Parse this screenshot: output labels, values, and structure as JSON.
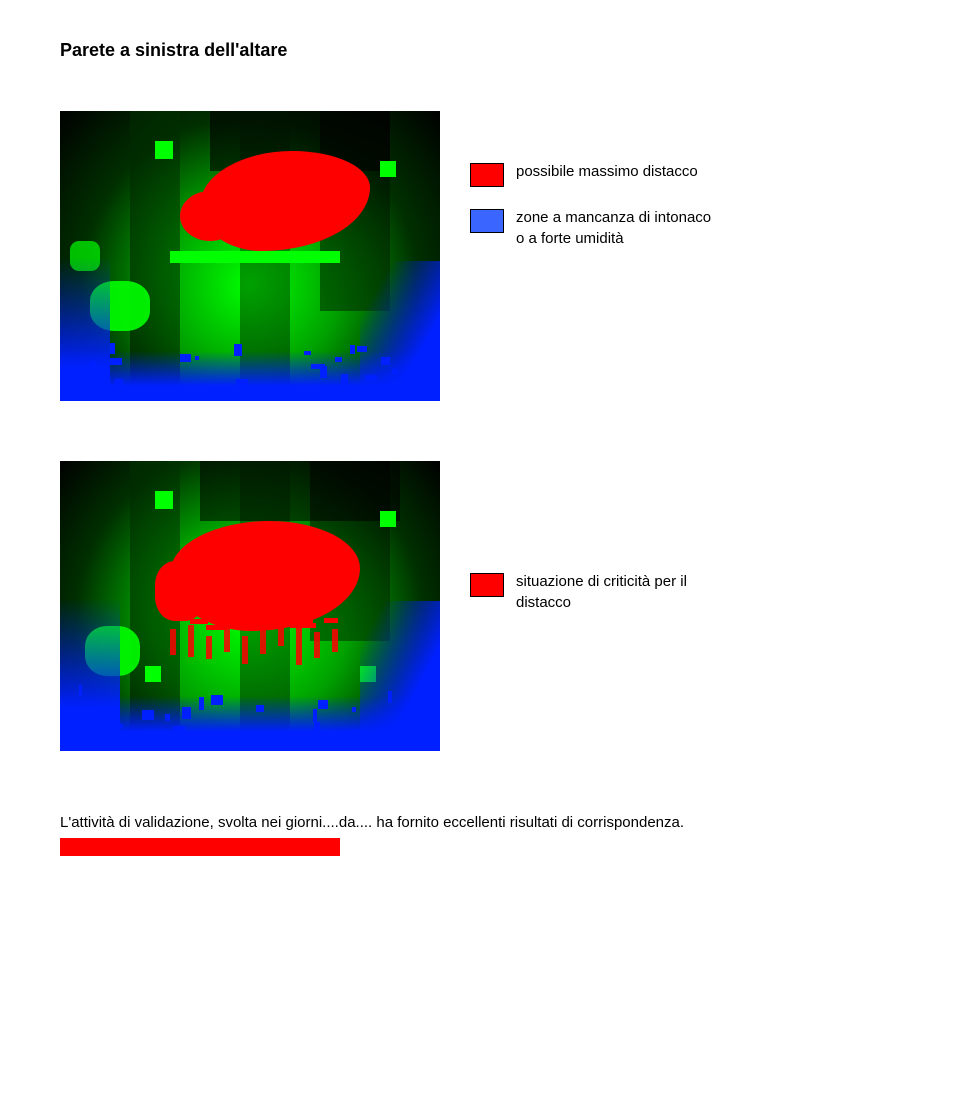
{
  "title": "Parete a sinistra dell'altare",
  "figure1": {
    "legend": [
      {
        "color": "#ff0000",
        "label": "possibile massimo distacco"
      },
      {
        "color": "#3a66ff",
        "label": "zone a mancanza di intonaco o a forte umidità"
      }
    ],
    "colors": {
      "green_bright": "#00ff00",
      "green_mid": "#00a000",
      "green_dark": "#003000",
      "red": "#ff0000",
      "blue": "#0020ff",
      "black": "#000000"
    }
  },
  "figure2": {
    "legend": [
      {
        "color": "#ff0000",
        "label": "situazione di criticità per il distacco"
      }
    ],
    "colors": {
      "green_bright": "#00ff00",
      "green_mid": "#00a000",
      "green_dark": "#003000",
      "red": "#ff0000",
      "blue": "#0020ff",
      "black": "#000000"
    }
  },
  "paragraph": {
    "prefix": "L'attività di validazione, svolta nei giorni....da.... ha fornito eccellenti risultati di corrispondenza."
  }
}
